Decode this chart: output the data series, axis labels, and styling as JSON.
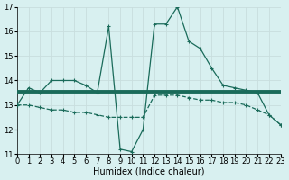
{
  "xlabel": "Humidex (Indice chaleur)",
  "x_values": [
    0,
    1,
    2,
    3,
    4,
    5,
    6,
    7,
    8,
    9,
    10,
    11,
    12,
    13,
    14,
    15,
    16,
    17,
    18,
    19,
    20,
    21,
    22,
    23
  ],
  "line1_y": [
    13.0,
    13.7,
    13.5,
    14.0,
    14.0,
    14.0,
    13.8,
    13.5,
    16.2,
    11.2,
    11.1,
    12.0,
    16.3,
    16.3,
    17.0,
    15.6,
    15.3,
    14.5,
    13.8,
    13.7,
    13.6,
    13.5,
    12.6,
    12.2
  ],
  "line2_y": [
    13.55,
    13.55,
    13.55,
    13.55,
    13.55,
    13.55,
    13.55,
    13.55,
    13.55,
    13.55,
    13.55,
    13.55,
    13.55,
    13.55,
    13.55,
    13.55,
    13.55,
    13.55,
    13.55,
    13.55,
    13.55,
    13.55,
    13.55,
    13.55
  ],
  "line3_y": [
    13.0,
    13.0,
    12.9,
    12.8,
    12.8,
    12.7,
    12.7,
    12.6,
    12.5,
    12.5,
    12.5,
    12.5,
    13.4,
    13.4,
    13.4,
    13.3,
    13.2,
    13.2,
    13.1,
    13.1,
    13.0,
    12.8,
    12.6,
    12.2
  ],
  "line_color": "#1a6b5a",
  "ylim_min": 11,
  "ylim_max": 17,
  "xlim_min": 0,
  "xlim_max": 23,
  "yticks": [
    11,
    12,
    13,
    14,
    15,
    16,
    17
  ],
  "grid_color": "#c8dede",
  "bg_color": "#d8f0f0",
  "tick_fontsize": 6,
  "label_fontsize": 7
}
